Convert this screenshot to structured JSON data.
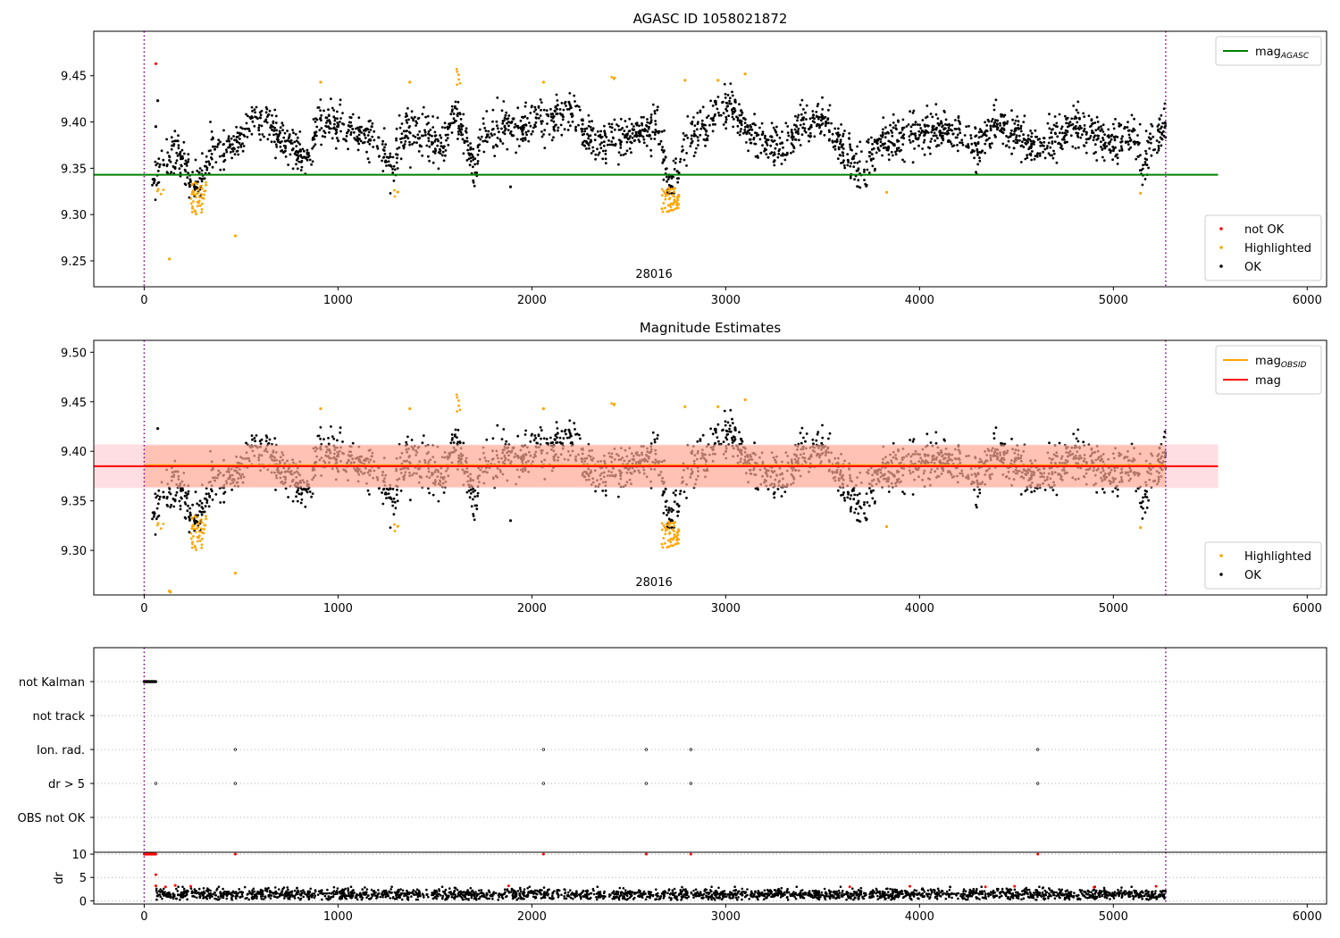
{
  "chart_data": [
    {
      "type": "scatter",
      "title": "AGASC ID 1058021872",
      "xlim": [
        -260,
        6100
      ],
      "ylim": [
        9.222,
        9.498
      ],
      "x_ticks": [
        0,
        1000,
        2000,
        3000,
        4000,
        5000,
        6000
      ],
      "x_tick_labels": [
        "0",
        "1000",
        "2000",
        "3000",
        "4000",
        "5000",
        "6000"
      ],
      "y_ticks": [
        9.25,
        9.3,
        9.35,
        9.4,
        9.45
      ],
      "y_tick_labels": [
        "9.25",
        "9.30",
        "9.35",
        "9.40",
        "9.45"
      ],
      "obsid_label": "28016",
      "obsid_label_x": 2630,
      "obs_boundaries": [
        0,
        5270
      ],
      "reference_lines": [
        {
          "name": "mag",
          "sub": "AGASC",
          "value": 9.343,
          "x_range": [
            -260,
            5540
          ],
          "color": "#008000"
        }
      ],
      "legend_lines": [
        {
          "name": "mag",
          "sub": "AGASC",
          "color": "#008000"
        }
      ],
      "legend_lines_position": "top-right",
      "legend_points": [
        {
          "name": "not OK",
          "color": "#ff0000"
        },
        {
          "name": "Highlighted",
          "color": "#ffa500"
        },
        {
          "name": "OK",
          "color": "#000000"
        }
      ],
      "legend_points_position": "lower-right",
      "series": [
        {
          "name": "OK",
          "color": "#000000",
          "curve": [
            [
              0,
              9.35
            ],
            [
              80,
              9.345
            ],
            [
              150,
              9.365
            ],
            [
              200,
              9.36
            ],
            [
              250,
              9.335
            ],
            [
              300,
              9.335
            ],
            [
              350,
              9.372
            ],
            [
              450,
              9.372
            ],
            [
              500,
              9.38
            ],
            [
              550,
              9.4
            ],
            [
              650,
              9.402
            ],
            [
              700,
              9.38
            ],
            [
              850,
              9.365
            ],
            [
              900,
              9.395
            ],
            [
              950,
              9.402
            ],
            [
              1000,
              9.395
            ],
            [
              1100,
              9.39
            ],
            [
              1200,
              9.38
            ],
            [
              1280,
              9.35
            ],
            [
              1350,
              9.395
            ],
            [
              1450,
              9.385
            ],
            [
              1550,
              9.375
            ],
            [
              1600,
              9.41
            ],
            [
              1650,
              9.385
            ],
            [
              1700,
              9.352
            ],
            [
              1750,
              9.385
            ],
            [
              1850,
              9.395
            ],
            [
              1950,
              9.39
            ],
            [
              2000,
              9.405
            ],
            [
              2100,
              9.405
            ],
            [
              2200,
              9.412
            ],
            [
              2300,
              9.38
            ],
            [
              2400,
              9.385
            ],
            [
              2500,
              9.385
            ],
            [
              2600,
              9.395
            ],
            [
              2650,
              9.4
            ],
            [
              2700,
              9.33
            ],
            [
              2750,
              9.34
            ],
            [
              2800,
              9.385
            ],
            [
              2900,
              9.39
            ],
            [
              2950,
              9.415
            ],
            [
              3050,
              9.41
            ],
            [
              3100,
              9.39
            ],
            [
              3200,
              9.38
            ],
            [
              3300,
              9.37
            ],
            [
              3400,
              9.4
            ],
            [
              3500,
              9.402
            ],
            [
              3600,
              9.372
            ],
            [
              3700,
              9.345
            ],
            [
              3800,
              9.38
            ],
            [
              4000,
              9.39
            ],
            [
              4100,
              9.393
            ],
            [
              4200,
              9.385
            ],
            [
              4300,
              9.375
            ],
            [
              4400,
              9.395
            ],
            [
              4500,
              9.385
            ],
            [
              4600,
              9.372
            ],
            [
              4700,
              9.385
            ],
            [
              4800,
              9.395
            ],
            [
              4900,
              9.385
            ],
            [
              5000,
              9.38
            ],
            [
              5100,
              9.39
            ],
            [
              5150,
              9.345
            ],
            [
              5200,
              9.385
            ],
            [
              5270,
              9.395
            ]
          ],
          "x_range": [
            40,
            5270
          ],
          "count": 2600,
          "noise": 0.011,
          "seed": 7
        }
      ],
      "extra_points": [
        {
          "x": 60,
          "y": 9.463,
          "color": "#ff0000"
        },
        {
          "x": 70,
          "y": 9.423,
          "color": "#000000"
        },
        {
          "x": 60,
          "y": 9.395,
          "color": "#000000"
        },
        {
          "x": 130,
          "y": 9.252,
          "color": "#ffa500"
        },
        {
          "x": 470,
          "y": 9.277,
          "color": "#ffa500"
        },
        {
          "x": 1890,
          "y": 9.33,
          "color": "#000000"
        },
        {
          "x": 3830,
          "y": 9.324,
          "color": "#ffa500"
        },
        {
          "x": 5140,
          "y": 9.323,
          "color": "#ffa500"
        },
        {
          "x": 2060,
          "y": 9.443,
          "color": "#ffa500"
        },
        {
          "x": 2960,
          "y": 9.445,
          "color": "#ffa500"
        },
        {
          "x": 3100,
          "y": 9.452,
          "color": "#ffa500"
        },
        {
          "x": 2790,
          "y": 9.445,
          "color": "#ffa500"
        },
        {
          "x": 910,
          "y": 9.443,
          "color": "#ffa500"
        },
        {
          "x": 1370,
          "y": 9.443,
          "color": "#ffa500"
        }
      ],
      "highlight_clusters": [
        {
          "x_range": [
            240,
            320
          ],
          "y_range": [
            9.3,
            9.335
          ],
          "count": 45
        },
        {
          "x_range": [
            2670,
            2760
          ],
          "y_range": [
            9.303,
            9.33
          ],
          "count": 55
        },
        {
          "x_range": [
            60,
            100
          ],
          "y_range": [
            9.32,
            9.328
          ],
          "count": 4
        },
        {
          "x_range": [
            1280,
            1310
          ],
          "y_range": [
            9.318,
            9.33
          ],
          "count": 4
        },
        {
          "x_range": [
            1600,
            1630
          ],
          "y_range": [
            9.44,
            9.465
          ],
          "count": 6
        },
        {
          "x_range": [
            2410,
            2430
          ],
          "y_range": [
            9.445,
            9.45
          ],
          "count": 3
        }
      ]
    },
    {
      "type": "scatter",
      "title": "Magnitude Estimates",
      "xlim": [
        -260,
        6100
      ],
      "ylim": [
        9.255,
        9.512
      ],
      "x_ticks": [
        0,
        1000,
        2000,
        3000,
        4000,
        5000,
        6000
      ],
      "x_tick_labels": [
        "0",
        "1000",
        "2000",
        "3000",
        "4000",
        "5000",
        "6000"
      ],
      "y_ticks": [
        9.3,
        9.35,
        9.4,
        9.45,
        9.5
      ],
      "y_tick_labels": [
        "9.30",
        "9.35",
        "9.40",
        "9.45",
        "9.50"
      ],
      "obsid_label": "28016",
      "obsid_label_x": 2630,
      "obs_boundaries": [
        0,
        5270
      ],
      "bands": [
        {
          "y_range": [
            9.363,
            9.407
          ],
          "x_range": [
            -260,
            5540
          ],
          "color": "#ffb6c1",
          "opacity": 0.45
        },
        {
          "y_range": [
            9.364,
            9.406
          ],
          "x_range": [
            0,
            5270
          ],
          "color": "#ffa07a",
          "opacity": 0.45
        }
      ],
      "reference_lines": [
        {
          "name": "mag",
          "sub": "OBSID",
          "value": 9.386,
          "x_range": [
            0,
            5270
          ],
          "color": "#ffa500"
        },
        {
          "name": "mag",
          "sub": "",
          "value": 9.385,
          "x_range": [
            -260,
            5540
          ],
          "color": "#ff0000"
        }
      ],
      "legend_lines": [
        {
          "name": "mag",
          "sub": "OBSID",
          "color": "#ffa500"
        },
        {
          "name": "mag",
          "sub": "",
          "color": "#ff0000"
        }
      ],
      "legend_lines_position": "top-right",
      "legend_points": [
        {
          "name": "Highlighted",
          "color": "#ffa500"
        },
        {
          "name": "OK",
          "color": "#000000"
        }
      ],
      "legend_points_position": "lower-right",
      "series": [
        {
          "name": "OK",
          "color": "#000000",
          "curve": "same-as-panel-1",
          "x_range": [
            40,
            5270
          ],
          "count": 2600,
          "noise": 0.011,
          "seed": 7
        }
      ],
      "extra_points": [
        {
          "x": 70,
          "y": 9.423,
          "color": "#000000"
        },
        {
          "x": 130,
          "y": 9.259,
          "color": "#ffa500"
        },
        {
          "x": 135,
          "y": 9.258,
          "color": "#ffa500"
        },
        {
          "x": 470,
          "y": 9.277,
          "color": "#ffa500"
        },
        {
          "x": 1890,
          "y": 9.33,
          "color": "#000000"
        },
        {
          "x": 3830,
          "y": 9.324,
          "color": "#ffa500"
        },
        {
          "x": 5140,
          "y": 9.323,
          "color": "#ffa500"
        },
        {
          "x": 2060,
          "y": 9.443,
          "color": "#ffa500"
        },
        {
          "x": 2960,
          "y": 9.445,
          "color": "#ffa500"
        },
        {
          "x": 3100,
          "y": 9.452,
          "color": "#ffa500"
        },
        {
          "x": 2790,
          "y": 9.445,
          "color": "#ffa500"
        },
        {
          "x": 910,
          "y": 9.443,
          "color": "#ffa500"
        },
        {
          "x": 1370,
          "y": 9.443,
          "color": "#ffa500"
        }
      ],
      "highlight_clusters": [
        {
          "x_range": [
            240,
            320
          ],
          "y_range": [
            9.3,
            9.335
          ],
          "count": 45
        },
        {
          "x_range": [
            2670,
            2760
          ],
          "y_range": [
            9.303,
            9.33
          ],
          "count": 55
        },
        {
          "x_range": [
            60,
            100
          ],
          "y_range": [
            9.32,
            9.328
          ],
          "count": 4
        },
        {
          "x_range": [
            1280,
            1310
          ],
          "y_range": [
            9.318,
            9.33
          ],
          "count": 4
        },
        {
          "x_range": [
            1600,
            1630
          ],
          "y_range": [
            9.44,
            9.465
          ],
          "count": 6
        },
        {
          "x_range": [
            2410,
            2430
          ],
          "y_range": [
            9.445,
            9.45
          ],
          "count": 3
        }
      ]
    },
    {
      "type": "scatter",
      "title": "",
      "xlim": [
        -260,
        6100
      ],
      "category_axis": [
        "not Kalman",
        "not track",
        "Ion. rad.",
        "dr > 5",
        "OBS not OK"
      ],
      "obs_boundaries": [
        0,
        5270
      ],
      "grid": true,
      "flags": [
        {
          "category": "not Kalman",
          "x_range": [
            0,
            60
          ],
          "count": 30
        },
        {
          "category": "Ion. rad.",
          "x": [
            470,
            2060,
            2590,
            2820,
            4610
          ]
        },
        {
          "category": "dr > 5",
          "x": [
            60,
            470,
            2060,
            2590,
            2820,
            4610
          ]
        }
      ]
    },
    {
      "type": "scatter",
      "title": "",
      "ylabel": "dr",
      "xlim": [
        -260,
        6100
      ],
      "ylim": [
        -0.7,
        10.4
      ],
      "x_ticks": [
        0,
        1000,
        2000,
        3000,
        4000,
        5000,
        6000
      ],
      "x_tick_labels": [
        "0",
        "1000",
        "2000",
        "3000",
        "4000",
        "5000",
        "6000"
      ],
      "y_ticks": [
        0,
        5,
        10
      ],
      "y_tick_labels": [
        "0",
        "5",
        "10"
      ],
      "obs_boundaries": [
        0,
        5270
      ],
      "grid": true,
      "series": [
        {
          "name": "OK",
          "color": "#000000",
          "x_range": [
            60,
            5270
          ],
          "count": 2400,
          "mean": 1.4,
          "noise": 0.6,
          "seed": 11
        }
      ],
      "red_points": [
        {
          "x_range": [
            0,
            60
          ],
          "y": 10,
          "count": 20
        },
        {
          "x": 470,
          "y": 10
        },
        {
          "x": 2060,
          "y": 10
        },
        {
          "x": 2590,
          "y": 10
        },
        {
          "x": 2820,
          "y": 10
        },
        {
          "x": 4610,
          "y": 10
        },
        {
          "x": 60,
          "y": 5.6
        },
        {
          "x": 60,
          "y": 3.2
        },
        {
          "x": 110,
          "y": 3.0
        },
        {
          "x": 160,
          "y": 3.3
        },
        {
          "x": 240,
          "y": 3.1
        },
        {
          "x": 1880,
          "y": 3.2
        },
        {
          "x": 3640,
          "y": 3.0
        },
        {
          "x": 3950,
          "y": 3.1
        },
        {
          "x": 4340,
          "y": 3.0
        },
        {
          "x": 4490,
          "y": 3.1
        },
        {
          "x": 4900,
          "y": 2.9
        },
        {
          "x": 5220,
          "y": 3.1
        }
      ]
    }
  ]
}
